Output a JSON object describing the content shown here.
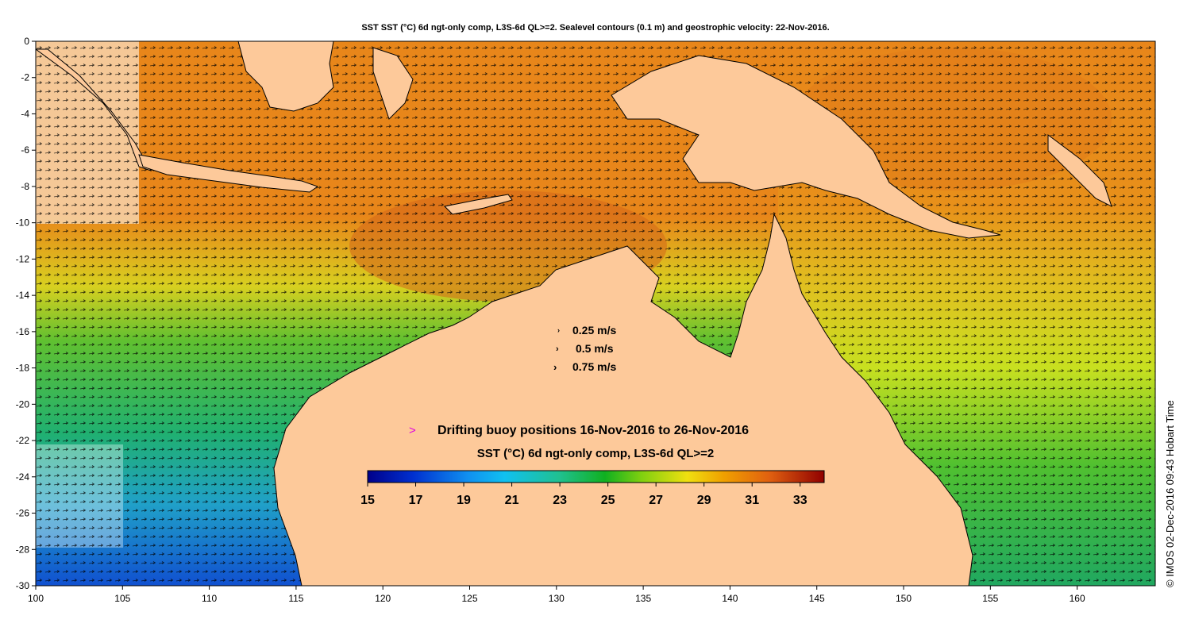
{
  "title": "SST SST (°C) 6d ngt-only comp, L3S-6d QL>=2. Sealevel contours (0.1 m) and geostrophic velocity: 22-Nov-2016.",
  "credit": "© IMOS 02-Dec-2016 09:43 Hobart Time",
  "axes": {
    "x_ticks": [
      "100",
      "105",
      "110",
      "115",
      "120",
      "125",
      "130",
      "135",
      "140",
      "145",
      "150",
      "155",
      "160"
    ],
    "y_ticks": [
      "0",
      "-2",
      "-4",
      "-6",
      "-8",
      "-10",
      "-12",
      "-14",
      "-16",
      "-18",
      "-20",
      "-22",
      "-24",
      "-26",
      "-28",
      "-30"
    ],
    "lon_range": [
      100,
      164.5
    ],
    "lat_range": [
      -30,
      0
    ]
  },
  "velocity_legend": {
    "items": [
      "0.25 m/s",
      "0.5 m/s",
      "0.75 m/s"
    ]
  },
  "buoy_legend": {
    "marker": ">",
    "label": "Drifting buoy positions 16-Nov-2016 to 26-Nov-2016",
    "marker_color": "#e000e0"
  },
  "colorbar": {
    "title": "SST (°C) 6d ngt-only comp, L3S-6d QL>=2",
    "ticks": [
      "15",
      "17",
      "19",
      "21",
      "23",
      "25",
      "27",
      "29",
      "31",
      "33"
    ],
    "range": [
      15,
      34
    ]
  },
  "colors": {
    "land": "#fdc99a",
    "warm": "#e8861a",
    "hot": "#d4661a",
    "mid": "#f0c020",
    "green": "#30b040",
    "cool": "#20a0c8",
    "cold": "#1050d0"
  }
}
